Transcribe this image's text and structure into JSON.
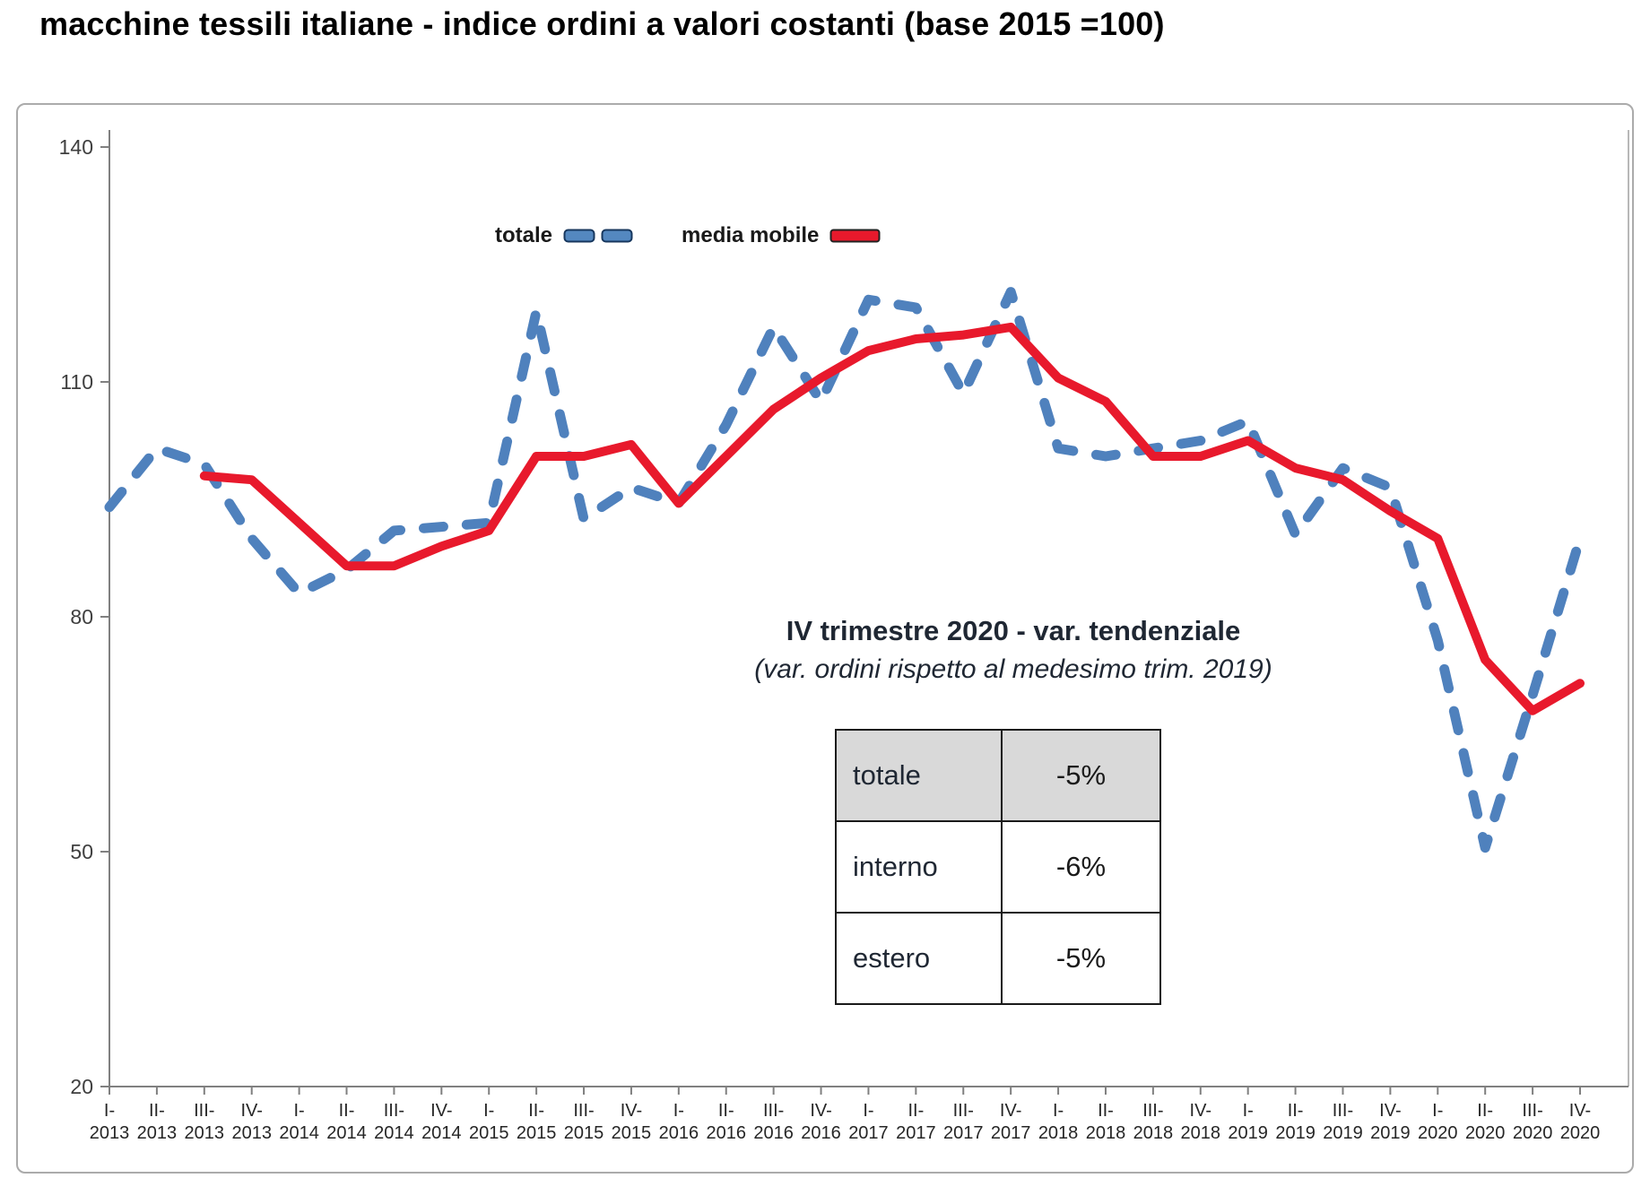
{
  "title": "macchine tessili italiane - indice ordini a valori costanti (base 2015 =100)",
  "legend": {
    "totale_label": "totale",
    "media_mobile_label": "media mobile"
  },
  "annotation": {
    "line1": "IV trimestre 2020 - var. tendenziale",
    "line2": "(var. ordini rispetto al medesimo trim. 2019)"
  },
  "table": {
    "rows": [
      {
        "label": "totale",
        "value": "-5%"
      },
      {
        "label": "interno",
        "value": "-6%"
      },
      {
        "label": "estero",
        "value": "-5%"
      }
    ]
  },
  "colors": {
    "totale_line": "#4F81BD",
    "media_mobile_line": "#E8192C",
    "swatch_border": "#17375E",
    "axis": "#808080",
    "axis_side": "#b8b8b8",
    "tick_label": "#3f3f3f",
    "x_label": "#262626"
  },
  "chart_data": {
    "type": "line",
    "title": "macchine tessili italiane - indice ordini a valori costanti (base 2015 =100)",
    "quarter_labels": [
      "I-",
      "II-",
      "III-",
      "IV-"
    ],
    "years": [
      "2013",
      "2014",
      "2015",
      "2016",
      "2017",
      "2018",
      "2019",
      "2020"
    ],
    "y_ticks": [
      20,
      50,
      80,
      110,
      140
    ],
    "ylim": [
      20,
      140
    ],
    "grid": false,
    "legend_position": "top-center-inside",
    "series": [
      {
        "name": "totale",
        "style": "dashed",
        "color": "#4F81BD",
        "values": [
          94,
          101.5,
          99.5,
          90,
          83,
          86,
          91,
          91.5,
          92,
          119,
          92.5,
          96.5,
          94.5,
          104.5,
          117,
          107.5,
          120.5,
          119.5,
          108.5,
          121.5,
          101.5,
          100.5,
          101.5,
          102.5,
          105,
          90.5,
          99,
          96.5,
          77,
          50.5,
          70,
          90
        ]
      },
      {
        "name": "media mobile",
        "style": "solid",
        "color": "#E8192C",
        "values": [
          null,
          null,
          98,
          97.5,
          92,
          86.5,
          86.5,
          89,
          91,
          100.5,
          100.5,
          102,
          94.5,
          100.5,
          106.5,
          110.5,
          114,
          115.5,
          116,
          117,
          110.5,
          107.5,
          100.5,
          100.5,
          102.5,
          99,
          97.5,
          93.5,
          90,
          74.5,
          68,
          71.5
        ]
      }
    ]
  }
}
